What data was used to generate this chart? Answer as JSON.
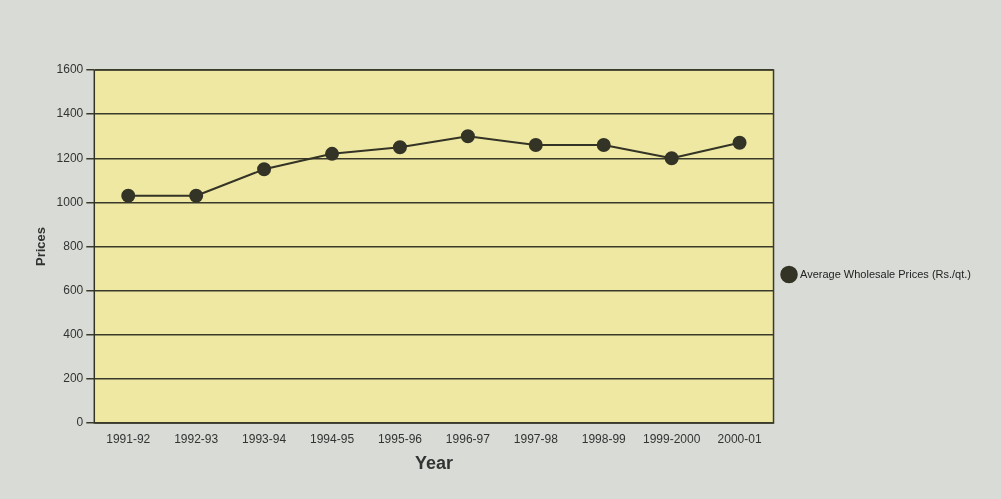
{
  "chart_data": {
    "type": "line",
    "xlabel": "Year",
    "ylabel": "Prices",
    "categories": [
      "1991-92",
      "1992-93",
      "1993-94",
      "1994-95",
      "1995-96",
      "1996-97",
      "1997-98",
      "1998-99",
      "1999-2000",
      "2000-01"
    ],
    "series": [
      {
        "name": "Average Wholesale Prices (Rs./qt.)",
        "color": "#333326",
        "values": [
          1030,
          1030,
          1150,
          1220,
          1250,
          1300,
          1260,
          1260,
          1200,
          1270
        ]
      }
    ],
    "ylim": [
      0,
      1600
    ],
    "yticks": [
      0,
      200,
      400,
      600,
      800,
      1000,
      1200,
      1400,
      1600
    ],
    "grid": "y",
    "legend": "right",
    "marker": "circle"
  }
}
